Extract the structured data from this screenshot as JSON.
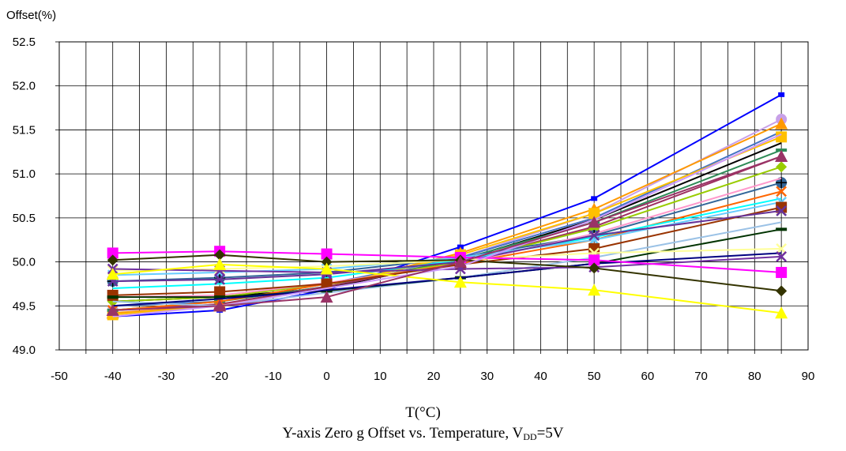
{
  "chart_data": {
    "type": "line",
    "title_prefix": "Y-axis Zero g Offset vs. Temperature, V",
    "title_subscript": "DD",
    "title_suffix": "=5V",
    "xlabel": "T(°C)",
    "ylabel": "Offset(%)",
    "xlim": [
      -50,
      90
    ],
    "ylim": [
      49.0,
      52.5
    ],
    "x_ticks": [
      -50,
      -40,
      -30,
      -20,
      -10,
      0,
      10,
      20,
      30,
      40,
      50,
      60,
      70,
      80,
      90
    ],
    "x_tick_labels": [
      "-50",
      "-40",
      "-30",
      "-20",
      "-10",
      "0",
      "10",
      "20",
      "30",
      "40",
      "50",
      "60",
      "70",
      "80",
      "90"
    ],
    "y_ticks": [
      49.0,
      49.5,
      50.0,
      50.5,
      51.0,
      51.5,
      52.0,
      52.5
    ],
    "y_tick_labels": [
      "49.0",
      "49.5",
      "50.0",
      "50.5",
      "51.0",
      "51.5",
      "52.0",
      "52.5"
    ],
    "grid": true,
    "x": [
      -40,
      -20,
      0,
      25,
      50,
      85
    ],
    "series": [
      {
        "color": "#0000FF",
        "marker": "square-small",
        "values": [
          49.38,
          49.45,
          49.68,
          50.17,
          50.72,
          51.9
        ]
      },
      {
        "color": "#C8A0E8",
        "marker": "circle",
        "values": [
          49.45,
          49.52,
          49.7,
          50.05,
          50.55,
          51.62
        ]
      },
      {
        "color": "#FF9900",
        "marker": "triangle",
        "values": [
          49.42,
          49.5,
          49.72,
          50.1,
          50.6,
          51.57
        ]
      },
      {
        "color": "#4472C4",
        "marker": "none",
        "values": [
          49.5,
          49.55,
          49.75,
          50.05,
          50.5,
          51.48
        ]
      },
      {
        "color": "#FFC000",
        "marker": "square",
        "values": [
          49.4,
          49.5,
          49.72,
          50.08,
          50.55,
          51.42
        ]
      },
      {
        "color": "#000000",
        "marker": "none",
        "values": [
          49.55,
          49.6,
          49.7,
          50.02,
          50.48,
          51.35
        ]
      },
      {
        "color": "#2E8B57",
        "marker": "dash",
        "values": [
          49.45,
          49.55,
          49.72,
          50.03,
          50.45,
          51.27
        ]
      },
      {
        "color": "#9E3060",
        "marker": "triangle",
        "values": [
          49.45,
          49.52,
          49.72,
          50.0,
          50.4,
          51.2
        ]
      },
      {
        "color": "#99CC00",
        "marker": "diamond",
        "values": [
          49.55,
          49.6,
          49.75,
          50.0,
          50.38,
          51.08
        ]
      },
      {
        "color": "#336699",
        "marker": "circle-plus",
        "values": [
          49.78,
          49.82,
          49.88,
          50.05,
          50.3,
          50.9
        ]
      },
      {
        "color": "#FF99CC",
        "marker": "none",
        "values": [
          49.6,
          49.62,
          49.76,
          49.98,
          50.32,
          50.95
        ]
      },
      {
        "color": "#FF6600",
        "marker": "x",
        "values": [
          49.45,
          49.55,
          49.75,
          49.98,
          50.25,
          50.8
        ]
      },
      {
        "color": "#00FFFF",
        "marker": "none",
        "values": [
          49.7,
          49.75,
          49.82,
          50.02,
          50.28,
          50.72
        ]
      },
      {
        "color": "#66CCFF",
        "marker": "x",
        "values": [
          49.85,
          49.88,
          49.92,
          50.05,
          50.25,
          50.68
        ]
      },
      {
        "color": "#993300",
        "marker": "square",
        "values": [
          49.62,
          49.66,
          49.75,
          49.97,
          50.15,
          50.62
        ]
      },
      {
        "color": "#663399",
        "marker": "x",
        "values": [
          49.78,
          49.8,
          49.86,
          50.0,
          50.3,
          50.58
        ]
      },
      {
        "color": "#9BC2E6",
        "marker": "none",
        "values": [
          49.55,
          49.5,
          49.65,
          49.82,
          50.05,
          50.45
        ]
      },
      {
        "color": "#003300",
        "marker": "dash",
        "values": [
          49.6,
          49.6,
          49.67,
          49.82,
          49.98,
          50.37
        ]
      },
      {
        "color": "#FFFF99",
        "marker": "x",
        "values": [
          49.9,
          49.92,
          49.95,
          50.02,
          50.1,
          50.15
        ]
      },
      {
        "color": "#000080",
        "marker": "none",
        "values": [
          49.5,
          49.58,
          49.68,
          49.82,
          49.98,
          50.1
        ]
      },
      {
        "color": "#7030A0",
        "marker": "x",
        "values": [
          49.92,
          49.9,
          49.88,
          49.92,
          49.94,
          50.06
        ]
      },
      {
        "color": "#FF00FF",
        "marker": "square",
        "values": [
          50.1,
          50.12,
          50.09,
          50.05,
          50.02,
          49.88
        ]
      },
      {
        "color": "#333300",
        "marker": "diamond",
        "values": [
          50.02,
          50.08,
          50.0,
          50.02,
          49.93,
          49.67
        ]
      },
      {
        "color": "#FFFF00",
        "marker": "triangle",
        "values": [
          49.86,
          49.97,
          49.92,
          49.77,
          49.68,
          49.42
        ]
      },
      {
        "color": "#CC99FF",
        "marker": "none",
        "values": [
          49.38,
          49.5,
          49.7,
          49.95,
          50.48,
          51.45
        ]
      },
      {
        "color": "#993366",
        "marker": "triangle",
        "values": [
          49.45,
          49.5,
          49.6,
          50.0,
          50.45,
          51.2
        ]
      }
    ]
  }
}
